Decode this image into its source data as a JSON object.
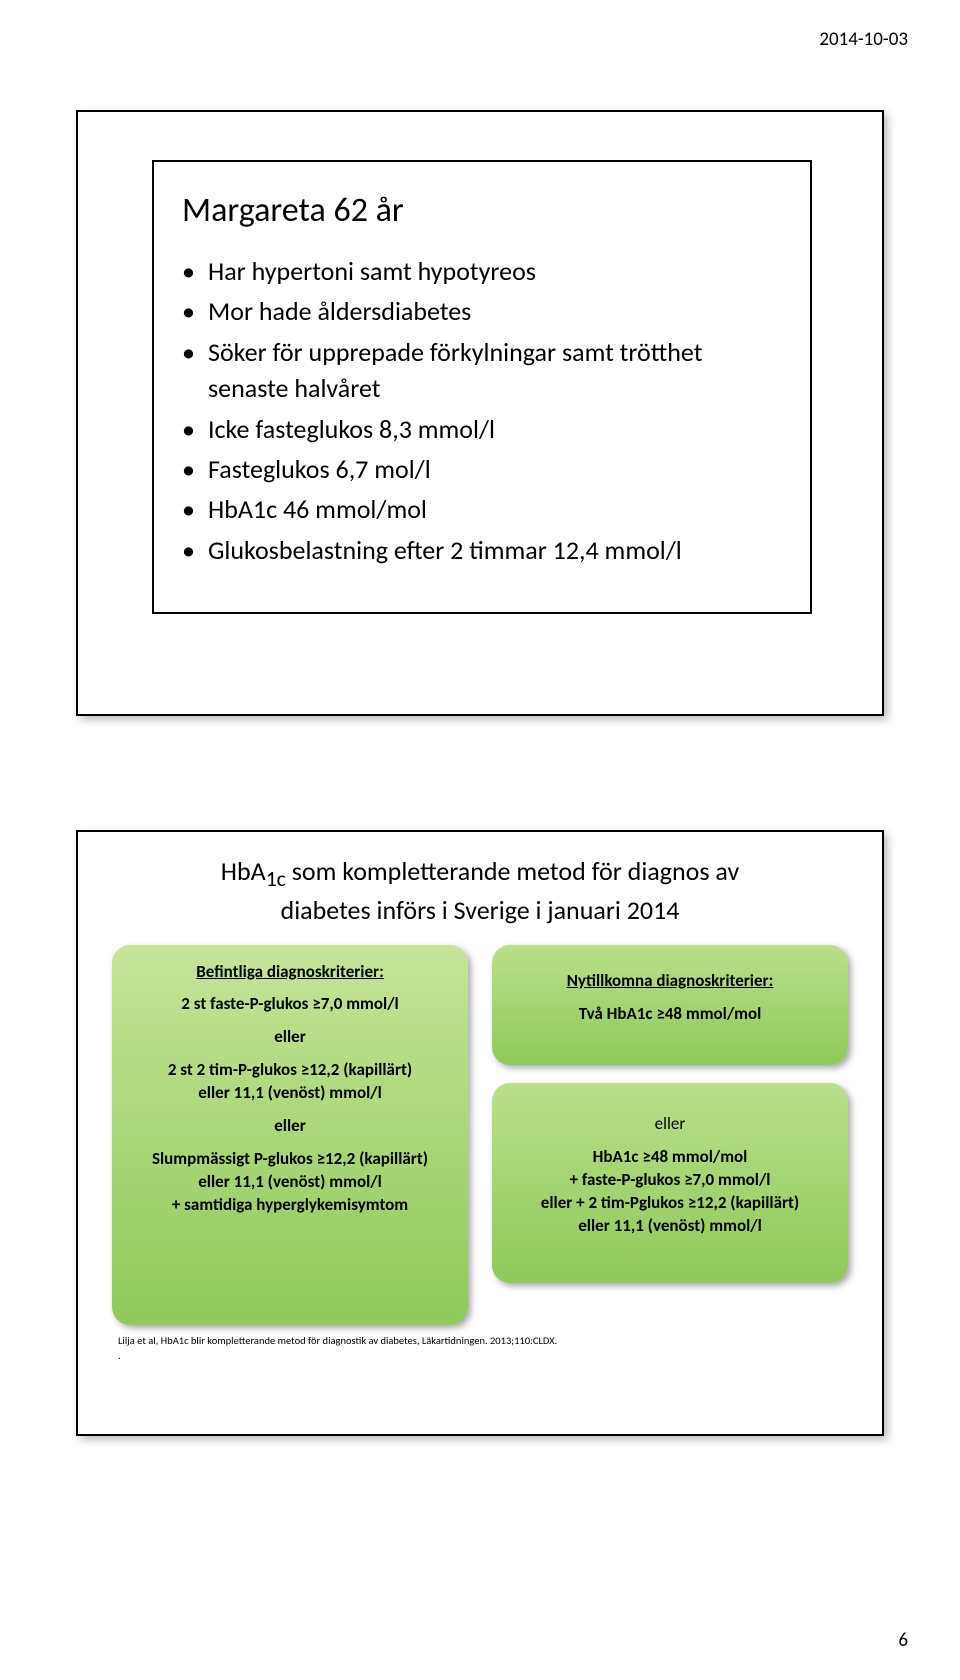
{
  "header_date": "2014-10-03",
  "page_number": "6",
  "slide1": {
    "title": "Margareta 62 år",
    "bullets": [
      "Har hypertoni samt hypotyreos",
      "Mor hade åldersdiabetes",
      "Söker för upprepade förkylningar samt trötthet senaste halvåret",
      "Icke fasteglukos 8,3 mmol/l",
      "Fasteglukos 6,7 mol/l",
      "HbA1c 46 mmol/mol",
      "Glukosbelastning efter 2 timmar 12,4 mmol/l"
    ]
  },
  "slide2": {
    "title_line1": "HbA",
    "title_sub": "1c",
    "title_rest": " som kompletterande metod för diagnos av",
    "title_line2": "diabetes införs i Sverige i januari 2014",
    "left": {
      "header": "Befintliga diagnoskriterier:",
      "l1": "2 st faste-P-glukos ≥7,0 mmol/l",
      "or1": "eller",
      "l2a": "2 st 2 tim-P-glukos ≥12,2 (kapillärt)",
      "l2b": "eller   11,1 (venöst) mmol/l",
      "or2": "eller",
      "l3a": "Slumpmässigt P-glukos ≥12,2 (kapillärt)",
      "l3b": "eller 11,1 (venöst) mmol/l",
      "l3c": "+ samtidiga hyperglykemisymtom"
    },
    "right1": {
      "header": "Nytillkomna diagnoskriterier:",
      "l1": "Två HbA1c ≥48 mmol/mol"
    },
    "right2": {
      "or": "eller",
      "l1": "HbA1c ≥48 mmol/mol",
      "l2": "+ faste-P-glukos ≥7,0 mmol/l",
      "l3": "eller + 2 tim-Pglukos ≥12,2 (kapillärt)",
      "l4": "eller 11,1 (venöst) mmol/l"
    },
    "citation": "Lilja et al, HbA1c blir kompletterande metod för diagnostik av diabetes, Läkartidningen. 2013;110:CLDX.",
    "citation2": "."
  },
  "colors": {
    "box_grad_top": "#c4e59a",
    "box_grad_bottom": "#8fc95a",
    "border": "#000000",
    "bg": "#ffffff"
  }
}
